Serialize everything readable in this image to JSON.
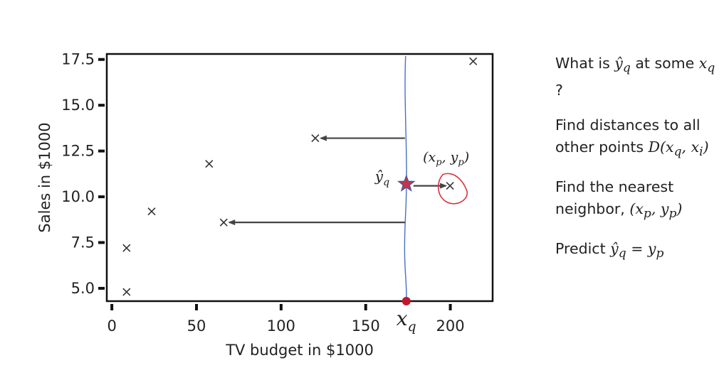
{
  "chart_data": {
    "type": "scatter",
    "xlabel": "TV budget in $1000",
    "ylabel": "Sales in $1000",
    "xlim": [
      -3,
      225
    ],
    "ylim": [
      4.3,
      17.8
    ],
    "xticks": [
      0,
      50,
      100,
      150,
      200
    ],
    "yticks": [
      5.0,
      7.5,
      10.0,
      12.5,
      15.0,
      17.5
    ],
    "grid": false,
    "points": [
      {
        "x": 8.7,
        "y": 4.8
      },
      {
        "x": 8.7,
        "y": 7.2
      },
      {
        "x": 23.5,
        "y": 9.2
      },
      {
        "x": 57.5,
        "y": 11.8
      },
      {
        "x": 66.1,
        "y": 8.6
      },
      {
        "x": 120.2,
        "y": 13.2
      },
      {
        "x": 199.8,
        "y": 10.6
      },
      {
        "x": 213.5,
        "y": 17.4
      }
    ],
    "query": {
      "x": 174,
      "y": 10.7
    },
    "nearest": {
      "x": 199.8,
      "y": 10.6
    },
    "distance_arrows_to": [
      {
        "x": 120.2,
        "y": 13.2
      },
      {
        "x": 66.1,
        "y": 8.6
      },
      {
        "x": 199.8,
        "y": 10.6
      }
    ]
  },
  "annotations": {
    "query_x_label": "x",
    "query_x_sub": "q",
    "query_y_label": "ŷ",
    "query_y_sub": "q",
    "nearest_label": "(x",
    "nearest_label_sub1": "p",
    "nearest_label_mid": ", y",
    "nearest_label_sub2": "p",
    "nearest_label_end": ")"
  },
  "side_panel": {
    "q1_text": "What is ",
    "q1_math": "ŷ",
    "q1_math_sub": "q",
    "q1_text2": " at some ",
    "q1_math2": "x",
    "q1_math2_sub": "q",
    "q1_end": " ?",
    "q2_text": "Find distances to all other points ",
    "q2_math": "D(x",
    "q2_math_sub1": "q",
    "q2_math_mid": ", x",
    "q2_math_sub2": "i",
    "q2_math_end": ")",
    "q3_text": "Find the nearest neighbor, ",
    "q3_math": "(x",
    "q3_math_sub1": "p",
    "q3_math_mid": ", y",
    "q3_math_sub2": "p",
    "q3_math_end": ")",
    "q4_text": "Predict ",
    "q4_math": "ŷ",
    "q4_math_sub": "q",
    "q4_math_eq": " = y",
    "q4_math_sub2": "p"
  },
  "colors": {
    "axis": "#111111",
    "arrow": "#444444",
    "vertical_line": "#4a6fc6",
    "star": "#c0364a",
    "circle_outline": "#d8333c",
    "query_dot": "#c0182a"
  }
}
